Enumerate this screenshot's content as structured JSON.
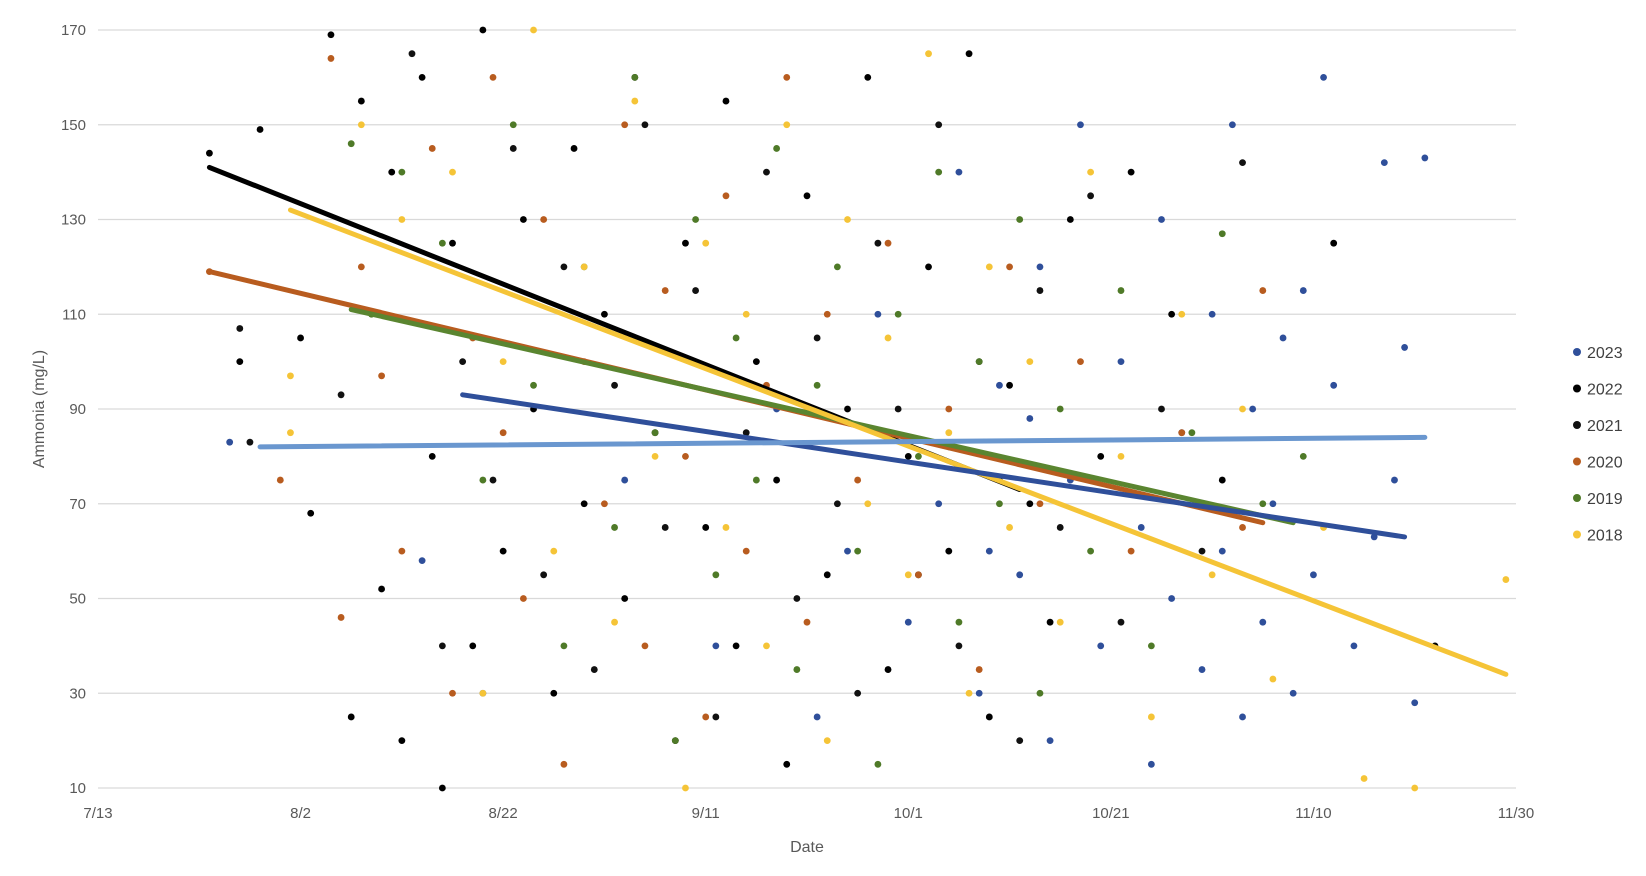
{
  "chart_data": {
    "type": "scatter",
    "title": "",
    "xlabel": "Date",
    "ylabel": "Ammonia (mg/L)",
    "x_ticks": [
      "7/13",
      "8/2",
      "8/22",
      "9/11",
      "10/1",
      "10/21",
      "11/10",
      "11/30"
    ],
    "y_ticks": [
      10,
      30,
      50,
      70,
      90,
      110,
      130,
      150,
      170
    ],
    "xlim": [
      "7/13",
      "11/30"
    ],
    "ylim": [
      10,
      170
    ],
    "grid": "horizontal",
    "legend_position": "right",
    "series": [
      {
        "name": "2023",
        "color": "#2f4f9a",
        "points": [
          [
            "7/26",
            83
          ],
          [
            "8/14",
            58
          ],
          [
            "8/20",
            30
          ],
          [
            "9/3",
            75
          ],
          [
            "9/12",
            40
          ],
          [
            "9/18",
            90
          ],
          [
            "9/22",
            25
          ],
          [
            "9/25",
            60
          ],
          [
            "9/28",
            110
          ],
          [
            "10/1",
            45
          ],
          [
            "10/4",
            70
          ],
          [
            "10/6",
            140
          ],
          [
            "10/8",
            30
          ],
          [
            "10/10",
            95
          ],
          [
            "10/12",
            55
          ],
          [
            "10/14",
            120
          ],
          [
            "10/15",
            20
          ],
          [
            "10/17",
            75
          ],
          [
            "10/18",
            150
          ],
          [
            "10/20",
            40
          ],
          [
            "10/22",
            100
          ],
          [
            "10/24",
            65
          ],
          [
            "10/25",
            15
          ],
          [
            "10/26",
            130
          ],
          [
            "10/27",
            50
          ],
          [
            "10/28",
            85
          ],
          [
            "10/30",
            35
          ],
          [
            "10/31",
            110
          ],
          [
            "11/1",
            60
          ],
          [
            "11/2",
            150
          ],
          [
            "11/3",
            25
          ],
          [
            "11/4",
            90
          ],
          [
            "11/5",
            45
          ],
          [
            "11/6",
            70
          ],
          [
            "11/7",
            105
          ],
          [
            "11/8",
            30
          ],
          [
            "11/9",
            115
          ],
          [
            "11/10",
            55
          ],
          [
            "11/11",
            160
          ],
          [
            "11/12",
            95
          ],
          [
            "11/14",
            40
          ],
          [
            "11/16",
            63
          ],
          [
            "11/17",
            142
          ],
          [
            "11/18",
            75
          ],
          [
            "11/19",
            103
          ],
          [
            "11/20",
            28
          ],
          [
            "11/21",
            143
          ],
          [
            "10/5",
            82
          ],
          [
            "10/9",
            60
          ],
          [
            "10/13",
            88
          ]
        ]
      },
      {
        "name": "2022",
        "color": "#000000",
        "points": [
          [
            "7/24",
            144
          ],
          [
            "7/27",
            100
          ],
          [
            "7/29",
            149
          ],
          [
            "8/2",
            105
          ],
          [
            "8/3",
            68
          ],
          [
            "8/5",
            169
          ],
          [
            "8/7",
            25
          ],
          [
            "8/8",
            155
          ],
          [
            "8/10",
            52
          ],
          [
            "8/11",
            140
          ],
          [
            "8/12",
            20
          ],
          [
            "8/14",
            160
          ],
          [
            "8/15",
            80
          ],
          [
            "8/16",
            10
          ],
          [
            "8/17",
            125
          ],
          [
            "8/19",
            40
          ],
          [
            "8/20",
            170
          ],
          [
            "8/22",
            60
          ],
          [
            "8/24",
            130
          ],
          [
            "8/25",
            90
          ],
          [
            "8/27",
            30
          ],
          [
            "8/29",
            145
          ],
          [
            "8/30",
            70
          ],
          [
            "9/1",
            110
          ],
          [
            "9/3",
            50
          ],
          [
            "9/4",
            160
          ],
          [
            "9/6",
            85
          ],
          [
            "9/8",
            20
          ],
          [
            "9/9",
            125
          ],
          [
            "9/11",
            65
          ],
          [
            "9/13",
            155
          ],
          [
            "9/14",
            40
          ],
          [
            "9/16",
            100
          ],
          [
            "9/18",
            75
          ],
          [
            "9/19",
            15
          ],
          [
            "9/21",
            135
          ],
          [
            "9/23",
            55
          ],
          [
            "9/25",
            90
          ],
          [
            "9/27",
            160
          ],
          [
            "9/29",
            35
          ],
          [
            "10/1",
            80
          ],
          [
            "10/3",
            120
          ],
          [
            "10/5",
            60
          ],
          [
            "10/7",
            165
          ],
          [
            "10/9",
            25
          ],
          [
            "10/11",
            95
          ],
          [
            "10/13",
            70
          ],
          [
            "10/15",
            45
          ],
          [
            "10/17",
            130
          ],
          [
            "10/20",
            80
          ],
          [
            "10/23",
            140
          ],
          [
            "10/27",
            110
          ],
          [
            "11/1",
            75
          ],
          [
            "11/12",
            125
          ],
          [
            "11/22",
            40
          ]
        ]
      },
      {
        "name": "2021",
        "color": "#111111",
        "points": [
          [
            "7/27",
            107
          ],
          [
            "7/28",
            83
          ],
          [
            "8/6",
            93
          ],
          [
            "8/13",
            165
          ],
          [
            "8/16",
            40
          ],
          [
            "8/18",
            100
          ],
          [
            "8/21",
            75
          ],
          [
            "8/23",
            145
          ],
          [
            "8/26",
            55
          ],
          [
            "8/28",
            120
          ],
          [
            "8/31",
            35
          ],
          [
            "9/2",
            95
          ],
          [
            "9/5",
            150
          ],
          [
            "9/7",
            65
          ],
          [
            "9/10",
            115
          ],
          [
            "9/12",
            25
          ],
          [
            "9/15",
            85
          ],
          [
            "9/17",
            140
          ],
          [
            "9/20",
            50
          ],
          [
            "9/22",
            105
          ],
          [
            "9/24",
            70
          ],
          [
            "9/26",
            30
          ],
          [
            "9/28",
            125
          ],
          [
            "9/30",
            90
          ],
          [
            "10/2",
            55
          ],
          [
            "10/4",
            150
          ],
          [
            "10/6",
            40
          ],
          [
            "10/8",
            100
          ],
          [
            "10/10",
            75
          ],
          [
            "10/12",
            20
          ],
          [
            "10/14",
            115
          ],
          [
            "10/16",
            65
          ],
          [
            "10/19",
            135
          ],
          [
            "10/22",
            45
          ],
          [
            "10/26",
            90
          ],
          [
            "10/30",
            60
          ],
          [
            "11/3",
            142
          ]
        ]
      },
      {
        "name": "2020",
        "color": "#b85c1f",
        "points": [
          [
            "7/24",
            119
          ],
          [
            "7/31",
            75
          ],
          [
            "8/5",
            164
          ],
          [
            "8/6",
            46
          ],
          [
            "8/8",
            120
          ],
          [
            "8/10",
            97
          ],
          [
            "8/12",
            60
          ],
          [
            "8/15",
            145
          ],
          [
            "8/17",
            30
          ],
          [
            "8/19",
            105
          ],
          [
            "8/21",
            160
          ],
          [
            "8/22",
            85
          ],
          [
            "8/24",
            50
          ],
          [
            "8/26",
            130
          ],
          [
            "8/28",
            15
          ],
          [
            "8/30",
            100
          ],
          [
            "9/1",
            70
          ],
          [
            "9/3",
            150
          ],
          [
            "9/5",
            40
          ],
          [
            "9/7",
            115
          ],
          [
            "9/9",
            80
          ],
          [
            "9/11",
            25
          ],
          [
            "9/13",
            135
          ],
          [
            "9/15",
            60
          ],
          [
            "9/17",
            95
          ],
          [
            "9/19",
            160
          ],
          [
            "9/21",
            45
          ],
          [
            "9/23",
            110
          ],
          [
            "9/26",
            75
          ],
          [
            "9/29",
            125
          ],
          [
            "10/2",
            55
          ],
          [
            "10/5",
            90
          ],
          [
            "10/8",
            35
          ],
          [
            "10/11",
            120
          ],
          [
            "10/14",
            70
          ],
          [
            "10/18",
            100
          ],
          [
            "10/23",
            60
          ],
          [
            "10/28",
            85
          ],
          [
            "11/3",
            65
          ],
          [
            "11/5",
            115
          ]
        ]
      },
      {
        "name": "2019",
        "color": "#4f7a28",
        "points": [
          [
            "8/7",
            146
          ],
          [
            "8/9",
            110
          ],
          [
            "8/12",
            140
          ],
          [
            "8/16",
            125
          ],
          [
            "8/20",
            75
          ],
          [
            "8/23",
            150
          ],
          [
            "8/25",
            95
          ],
          [
            "8/28",
            40
          ],
          [
            "8/30",
            120
          ],
          [
            "9/2",
            65
          ],
          [
            "9/4",
            160
          ],
          [
            "9/6",
            85
          ],
          [
            "9/8",
            20
          ],
          [
            "9/10",
            130
          ],
          [
            "9/12",
            55
          ],
          [
            "9/14",
            105
          ],
          [
            "9/16",
            75
          ],
          [
            "9/18",
            145
          ],
          [
            "9/20",
            35
          ],
          [
            "9/22",
            95
          ],
          [
            "9/24",
            120
          ],
          [
            "9/26",
            60
          ],
          [
            "9/28",
            15
          ],
          [
            "9/30",
            110
          ],
          [
            "10/2",
            80
          ],
          [
            "10/4",
            140
          ],
          [
            "10/6",
            45
          ],
          [
            "10/8",
            100
          ],
          [
            "10/10",
            70
          ],
          [
            "10/12",
            130
          ],
          [
            "10/14",
            30
          ],
          [
            "10/16",
            90
          ],
          [
            "10/19",
            60
          ],
          [
            "10/22",
            115
          ],
          [
            "10/25",
            40
          ],
          [
            "10/29",
            85
          ],
          [
            "11/1",
            127
          ],
          [
            "11/5",
            70
          ],
          [
            "11/9",
            80
          ]
        ]
      },
      {
        "name": "2018",
        "color": "#f5c437",
        "points": [
          [
            "8/1",
            97
          ],
          [
            "8/1",
            85
          ],
          [
            "8/8",
            150
          ],
          [
            "8/12",
            130
          ],
          [
            "8/17",
            140
          ],
          [
            "8/20",
            30
          ],
          [
            "8/22",
            100
          ],
          [
            "8/25",
            170
          ],
          [
            "8/27",
            60
          ],
          [
            "8/30",
            120
          ],
          [
            "9/2",
            45
          ],
          [
            "9/4",
            155
          ],
          [
            "9/6",
            80
          ],
          [
            "9/9",
            10
          ],
          [
            "9/11",
            125
          ],
          [
            "9/13",
            65
          ],
          [
            "9/15",
            110
          ],
          [
            "9/17",
            40
          ],
          [
            "9/19",
            150
          ],
          [
            "9/21",
            90
          ],
          [
            "9/23",
            20
          ],
          [
            "9/25",
            130
          ],
          [
            "9/27",
            70
          ],
          [
            "9/29",
            105
          ],
          [
            "10/1",
            55
          ],
          [
            "10/3",
            165
          ],
          [
            "10/5",
            85
          ],
          [
            "10/7",
            30
          ],
          [
            "10/9",
            120
          ],
          [
            "10/11",
            65
          ],
          [
            "10/13",
            100
          ],
          [
            "10/16",
            45
          ],
          [
            "10/19",
            140
          ],
          [
            "10/22",
            80
          ],
          [
            "10/25",
            25
          ],
          [
            "10/28",
            110
          ],
          [
            "10/31",
            55
          ],
          [
            "11/3",
            90
          ],
          [
            "11/6",
            33
          ],
          [
            "11/11",
            65
          ],
          [
            "11/15",
            12
          ],
          [
            "11/20",
            10
          ],
          [
            "11/29",
            54
          ]
        ]
      }
    ],
    "trendlines": [
      {
        "series": "2022",
        "color": "#000000",
        "start": [
          "7/24",
          141
        ],
        "end": [
          "10/12",
          73
        ]
      },
      {
        "series": "2020",
        "color": "#b85c1f",
        "start": [
          "7/24",
          119
        ],
        "end": [
          "11/5",
          66
        ]
      },
      {
        "series": "2019",
        "color": "#5a8530",
        "start": [
          "8/7",
          111
        ],
        "end": [
          "11/8",
          66
        ]
      },
      {
        "series": "2018",
        "color": "#f5c437",
        "start": [
          "8/1",
          132
        ],
        "end": [
          "11/29",
          34
        ]
      },
      {
        "series": "2023",
        "color": "#2f4f9a",
        "start": [
          "8/18",
          93
        ],
        "end": [
          "11/19",
          63
        ]
      },
      {
        "series": "2021",
        "color": "#6a97cf",
        "start": [
          "7/29",
          82
        ],
        "end": [
          "11/21",
          84
        ]
      }
    ]
  }
}
